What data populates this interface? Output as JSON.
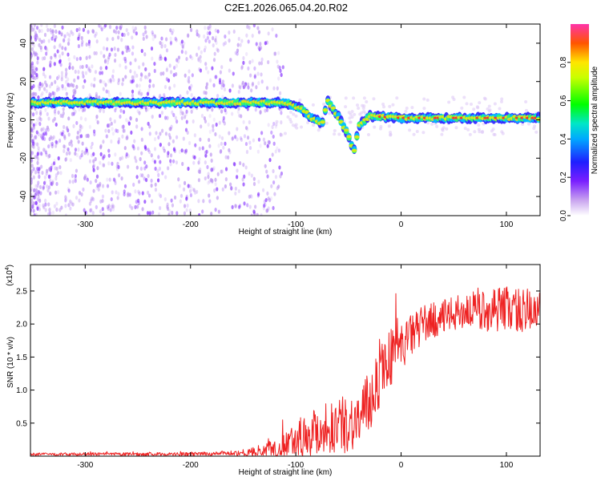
{
  "figure": {
    "title": "C2E1.2026.065.04.20.R02"
  },
  "colors": {
    "snr_line": "#ee2222",
    "frame": "#000000"
  },
  "chart_data": [
    {
      "type": "heatmap",
      "name": "spectrogram",
      "xlabel": "Height of straight line (km)",
      "ylabel": "Frequency (Hz)",
      "xlim": [
        -352,
        132
      ],
      "ylim": [
        -50,
        50
      ],
      "xticks": [
        -300,
        -200,
        -100,
        0,
        100
      ],
      "yticks": [
        -40,
        -20,
        0,
        20,
        40
      ],
      "colorbar": {
        "label": "Normalized spectral amplitude",
        "range": [
          0,
          1
        ],
        "ticks": [
          "0.0",
          "0.2",
          "0.4",
          "0.6",
          "0.8"
        ]
      },
      "ridge": {
        "description_points": [
          {
            "x": -350,
            "f": 9
          },
          {
            "x": -300,
            "f": 9
          },
          {
            "x": -250,
            "f": 9
          },
          {
            "x": -200,
            "f": 9
          },
          {
            "x": -150,
            "f": 9
          },
          {
            "x": -110,
            "f": 9
          },
          {
            "x": -95,
            "f": 6
          },
          {
            "x": -85,
            "f": 1
          },
          {
            "x": -75,
            "f": -2
          },
          {
            "x": -70,
            "f": 10
          },
          {
            "x": -60,
            "f": 2
          },
          {
            "x": -50,
            "f": -8
          },
          {
            "x": -45,
            "f": -17
          },
          {
            "x": -40,
            "f": -3
          },
          {
            "x": -30,
            "f": 2
          },
          {
            "x": 0,
            "f": 1
          },
          {
            "x": 50,
            "f": 1
          },
          {
            "x": 100,
            "f": 1
          },
          {
            "x": 132,
            "f": 1
          }
        ]
      }
    },
    {
      "type": "line",
      "name": "snr",
      "xlabel": "Height of straight line (km)",
      "ylabel": "SNR (10 * v/v)",
      "multiplier_label": "(x10",
      "multiplier_exp": "4",
      "xlim": [
        -352,
        132
      ],
      "ylim": [
        0,
        29000
      ],
      "xticks": [
        -300,
        -200,
        -100,
        0,
        100
      ],
      "yticks": [
        0.5,
        1.0,
        1.5,
        2.0,
        2.5
      ],
      "ytick_labels": [
        "0.5",
        "1.0",
        "1.5",
        "2.0",
        "2.5"
      ],
      "trend": [
        {
          "x": -352,
          "y": 300
        },
        {
          "x": -200,
          "y": 300
        },
        {
          "x": -150,
          "y": 500
        },
        {
          "x": -120,
          "y": 1000
        },
        {
          "x": -100,
          "y": 2500
        },
        {
          "x": -80,
          "y": 4000
        },
        {
          "x": -60,
          "y": 4500
        },
        {
          "x": -40,
          "y": 5500
        },
        {
          "x": -30,
          "y": 8000
        },
        {
          "x": -20,
          "y": 13000
        },
        {
          "x": -10,
          "y": 15000
        },
        {
          "x": 0,
          "y": 16500
        },
        {
          "x": 20,
          "y": 20000
        },
        {
          "x": 40,
          "y": 21000
        },
        {
          "x": 60,
          "y": 22000
        },
        {
          "x": 80,
          "y": 22000
        },
        {
          "x": 100,
          "y": 22500
        },
        {
          "x": 132,
          "y": 21500
        }
      ],
      "noise_amplitude": [
        {
          "x": -352,
          "a": 200
        },
        {
          "x": -160,
          "a": 300
        },
        {
          "x": -120,
          "a": 1500
        },
        {
          "x": -80,
          "a": 4000
        },
        {
          "x": -40,
          "a": 4500
        },
        {
          "x": -20,
          "a": 5500
        },
        {
          "x": 0,
          "a": 3500
        },
        {
          "x": 40,
          "a": 2500
        },
        {
          "x": 100,
          "a": 3500
        },
        {
          "x": 132,
          "a": 3500
        }
      ]
    }
  ]
}
